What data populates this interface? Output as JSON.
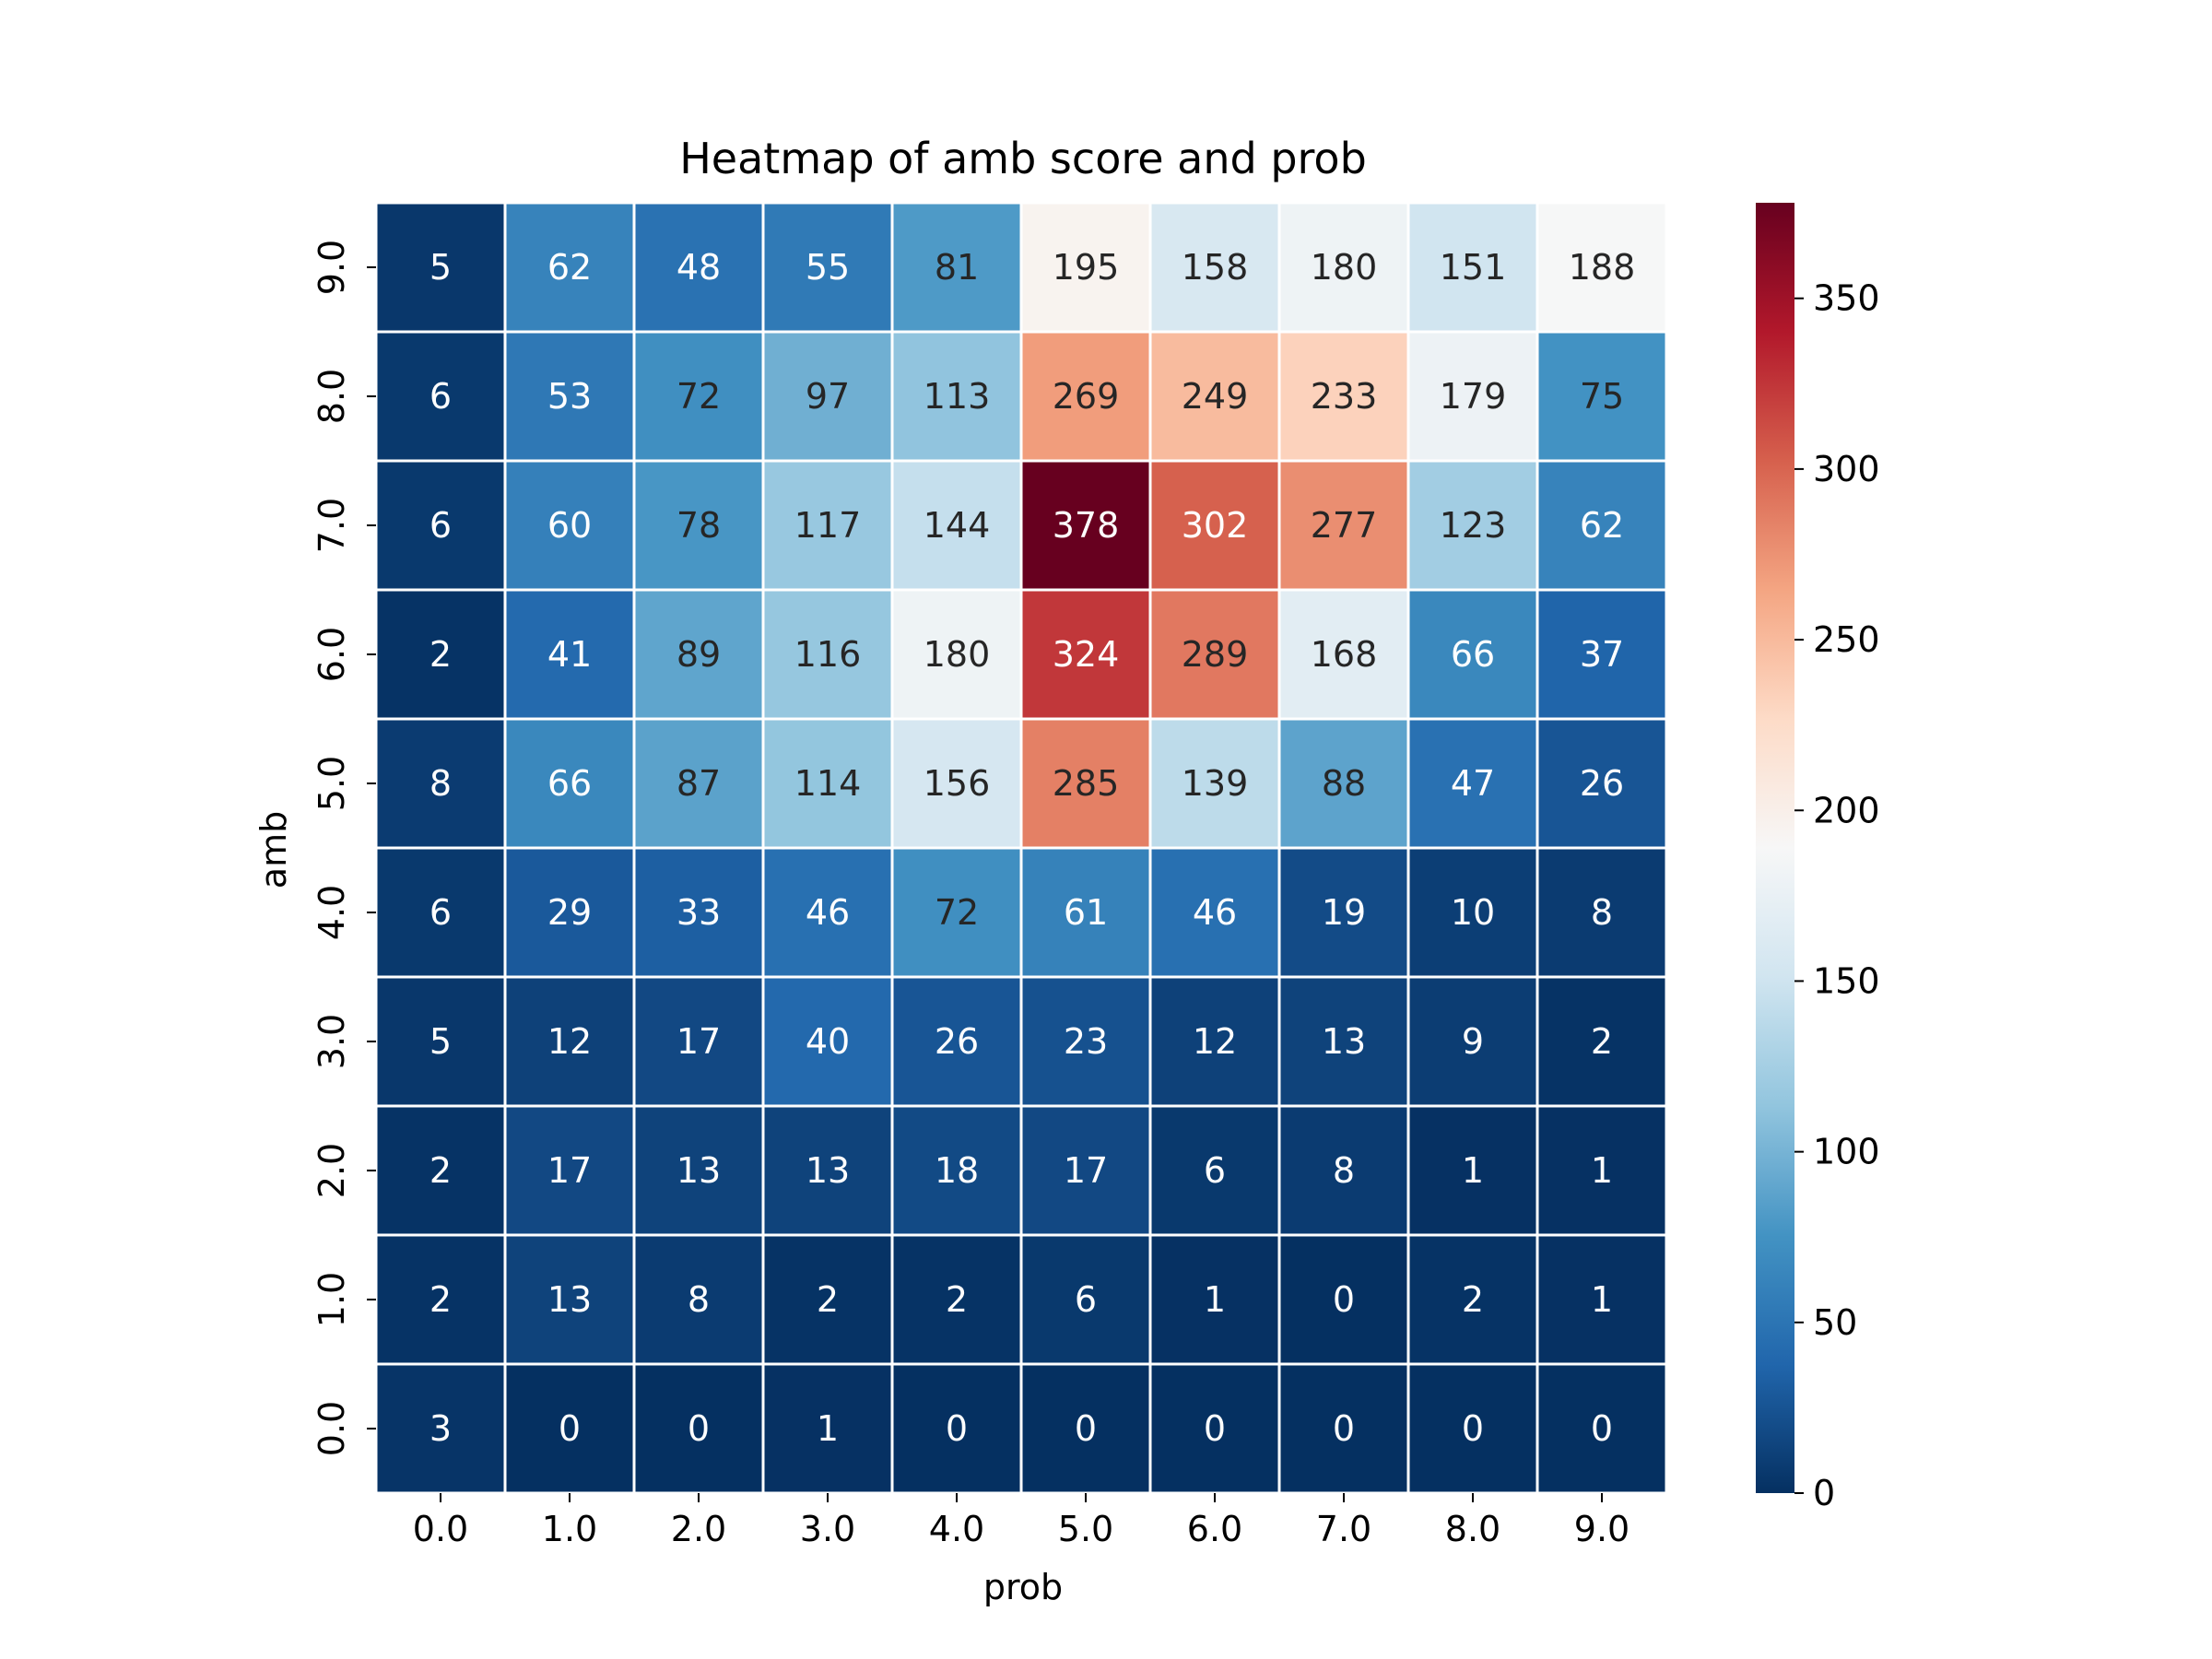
{
  "chart_data": {
    "type": "heatmap",
    "title": "Heatmap of amb score and prob",
    "xlabel": "prob",
    "ylabel": "amb",
    "x_categories": [
      "0.0",
      "1.0",
      "2.0",
      "3.0",
      "4.0",
      "5.0",
      "6.0",
      "7.0",
      "8.0",
      "9.0"
    ],
    "y_categories": [
      "9.0",
      "8.0",
      "7.0",
      "6.0",
      "5.0",
      "4.0",
      "3.0",
      "2.0",
      "1.0",
      "0.0"
    ],
    "values": [
      [
        5,
        62,
        48,
        55,
        81,
        195,
        158,
        180,
        151,
        188
      ],
      [
        6,
        53,
        72,
        97,
        113,
        269,
        249,
        233,
        179,
        75
      ],
      [
        6,
        60,
        78,
        117,
        144,
        378,
        302,
        277,
        123,
        62
      ],
      [
        2,
        41,
        89,
        116,
        180,
        324,
        289,
        168,
        66,
        37
      ],
      [
        8,
        66,
        87,
        114,
        156,
        285,
        139,
        88,
        47,
        26
      ],
      [
        6,
        29,
        33,
        46,
        72,
        61,
        46,
        19,
        10,
        8
      ],
      [
        5,
        12,
        17,
        40,
        26,
        23,
        12,
        13,
        9,
        2
      ],
      [
        2,
        17,
        13,
        13,
        18,
        17,
        6,
        8,
        1,
        1
      ],
      [
        2,
        13,
        8,
        2,
        2,
        6,
        1,
        0,
        2,
        1
      ],
      [
        3,
        0,
        0,
        1,
        0,
        0,
        0,
        0,
        0,
        0
      ]
    ],
    "colormap": "RdBu_r",
    "vmin": 0,
    "vmax": 378,
    "colorbar_ticks": [
      "0",
      "50",
      "100",
      "150",
      "200",
      "250",
      "300",
      "350"
    ],
    "cell_border_color": "#ffffff",
    "annotated": true
  }
}
